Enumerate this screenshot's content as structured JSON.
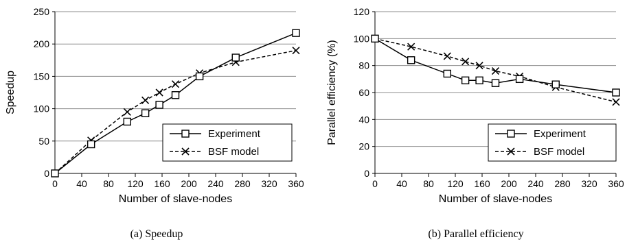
{
  "chart_data": [
    {
      "type": "line",
      "caption": "(a) Speedup",
      "xlabel": "Number of slave-nodes",
      "ylabel": "Speedup",
      "xlim": [
        0,
        360
      ],
      "ylim": [
        0,
        250
      ],
      "xticks": [
        0,
        40,
        80,
        120,
        160,
        200,
        240,
        280,
        320,
        360
      ],
      "yticks": [
        0,
        50,
        100,
        150,
        200,
        250
      ],
      "grid": "horizontal",
      "legend_position": "bottom-right",
      "series": [
        {
          "name": "Experiment",
          "marker": "square",
          "style": "solid",
          "x": [
            0,
            54,
            108,
            135,
            156,
            180,
            216,
            270,
            360
          ],
          "y": [
            0,
            45,
            80,
            93,
            106,
            121,
            150,
            179,
            217
          ]
        },
        {
          "name": "BSF model",
          "marker": "x",
          "style": "dashed",
          "x": [
            0,
            54,
            108,
            135,
            156,
            180,
            216,
            270,
            360
          ],
          "y": [
            0,
            51,
            95,
            113,
            125,
            138,
            155,
            172,
            190
          ]
        }
      ]
    },
    {
      "type": "line",
      "caption": "(b) Parallel efficiency",
      "xlabel": "Number of slave-nodes",
      "ylabel": "Parallel efficiency (%)",
      "xlim": [
        0,
        360
      ],
      "ylim": [
        0,
        120
      ],
      "xticks": [
        0,
        40,
        80,
        120,
        160,
        200,
        240,
        280,
        320,
        360
      ],
      "yticks": [
        0,
        20,
        40,
        60,
        80,
        100,
        120
      ],
      "grid": "horizontal",
      "legend_position": "bottom-right",
      "series": [
        {
          "name": "Experiment",
          "marker": "square",
          "style": "solid",
          "x": [
            0,
            54,
            108,
            135,
            156,
            180,
            216,
            270,
            360
          ],
          "y": [
            100,
            84,
            74,
            69,
            69,
            67,
            70,
            66,
            60
          ]
        },
        {
          "name": "BSF model",
          "marker": "x",
          "style": "dashed",
          "x": [
            0,
            54,
            108,
            135,
            156,
            180,
            216,
            270,
            360
          ],
          "y": [
            100,
            94,
            87,
            83,
            80,
            76,
            72,
            64,
            53
          ]
        }
      ]
    }
  ]
}
